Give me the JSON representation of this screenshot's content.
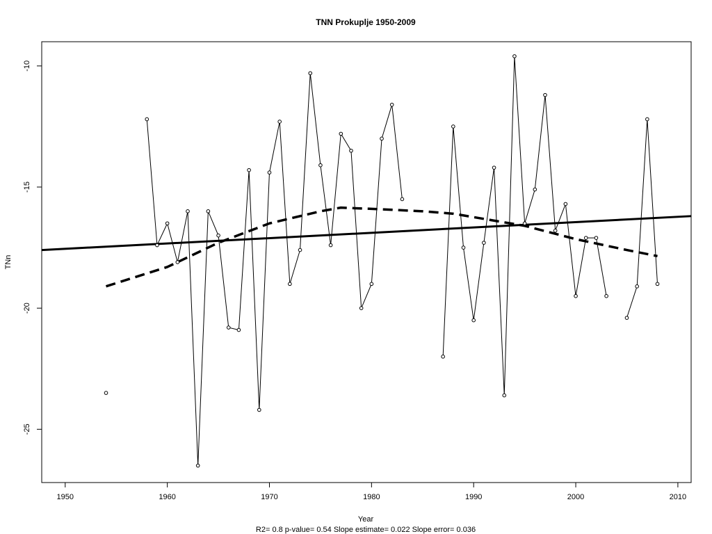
{
  "chart_data": {
    "type": "line",
    "title": "TNN   Prokuplje 1950-2009",
    "xlabel": "Year",
    "ylabel": "TNn",
    "caption": "R2= 0.8  p-value= 0.54  Slope estimate= 0.022  Slope error= 0.036",
    "xlim": [
      1947.7,
      2011.3
    ],
    "ylim": [
      -27.2,
      -9.0
    ],
    "x_ticks": [
      1950,
      1960,
      1970,
      1980,
      1990,
      2000,
      2010
    ],
    "x_tick_labels": [
      "1950",
      "1960",
      "1970",
      "1980",
      "1990",
      "2000",
      "2010"
    ],
    "y_ticks": [
      -25,
      -20,
      -15,
      -10
    ],
    "y_tick_labels": [
      "-25",
      "-20",
      "-15",
      "-10"
    ],
    "grid": false,
    "legend": "none",
    "colors": {
      "line": "#000000",
      "background": "#ffffff"
    },
    "series": [
      {
        "x": [
          1954,
          1958,
          1959,
          1960,
          1961,
          1962,
          1963,
          1964,
          1965,
          1966,
          1967,
          1968,
          1969,
          1970,
          1971,
          1972,
          1973,
          1974,
          1975,
          1976,
          1977,
          1978,
          1979,
          1980,
          1981,
          1982,
          1983,
          1987,
          1988,
          1989,
          1990,
          1991,
          1992,
          1993,
          1994,
          1995,
          1996,
          1997,
          1998,
          1999,
          2000,
          2001,
          2002,
          2003,
          2005,
          2006,
          2007,
          2008
        ],
        "y": [
          -23.5,
          -12.2,
          -17.4,
          -16.5,
          -18.1,
          -16.0,
          -26.5,
          -16.0,
          -17.0,
          -20.8,
          -20.9,
          -14.3,
          -24.2,
          -14.4,
          -12.3,
          -19.0,
          -17.6,
          -10.3,
          -14.1,
          -17.4,
          -12.8,
          -13.5,
          -20.0,
          -19.0,
          -13.0,
          -11.6,
          -15.5,
          -22.0,
          -12.5,
          -17.5,
          -20.5,
          -17.3,
          -14.2,
          -23.6,
          -9.6,
          -16.5,
          -15.1,
          -11.2,
          -16.8,
          -15.7,
          -19.5,
          -17.1,
          -17.1,
          -19.5,
          -20.4,
          -19.1,
          -12.2,
          -19.0
        ]
      },
      {
        "x": [
          1954,
          1960,
          1965,
          1970,
          1975,
          1977,
          1980,
          1985,
          1988,
          1995,
          2000,
          2005,
          2008
        ],
        "y": [
          -19.1,
          -18.3,
          -17.3,
          -16.5,
          -16.0,
          -15.85,
          -15.9,
          -16.0,
          -16.1,
          -16.6,
          -17.15,
          -17.6,
          -17.85
        ]
      },
      {
        "x": [
          1947.7,
          2011.3
        ],
        "y": [
          -17.6,
          -16.2
        ]
      }
    ]
  }
}
